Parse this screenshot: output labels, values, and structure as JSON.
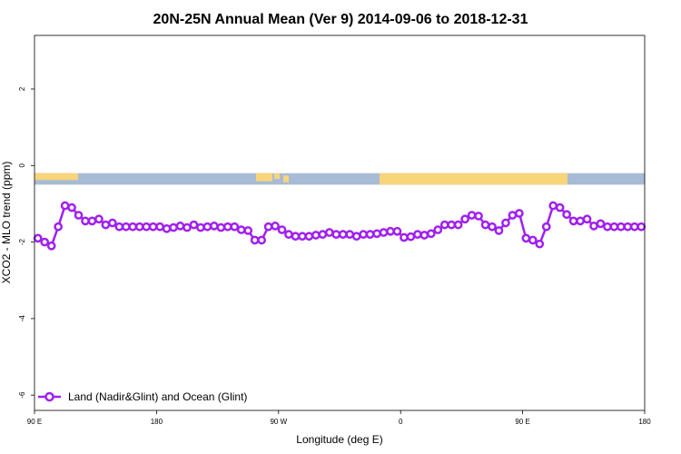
{
  "chart_data": {
    "type": "line",
    "title": "20N-25N Annual Mean (Ver 9)   2014-09-06 to 2018-12-31",
    "xlabel": "Longitude (deg E)",
    "ylabel": "XCO2 - MLO trend (ppm)",
    "xlim": [
      90,
      540
    ],
    "ylim": [
      -6.4,
      3.4
    ],
    "x_ticks": [
      {
        "value": 90,
        "label": "90 E"
      },
      {
        "value": 180,
        "label": "180"
      },
      {
        "value": 270,
        "label": "90 W"
      },
      {
        "value": 360,
        "label": "0"
      },
      {
        "value": 450,
        "label": "90 E"
      },
      {
        "value": 540,
        "label": "180"
      }
    ],
    "y_ticks": [
      {
        "value": 2,
        "label": "2"
      },
      {
        "value": 0,
        "label": "0"
      },
      {
        "value": -2,
        "label": "-2"
      },
      {
        "value": -4,
        "label": "-4"
      },
      {
        "value": -6,
        "label": "-6"
      }
    ],
    "series": [
      {
        "name": "Land (Nadir&Glint) and Ocean (Glint)",
        "color": "#a020f0",
        "x": [
          92.5,
          97.5,
          102.5,
          107.5,
          112.5,
          117.5,
          122.5,
          127.5,
          132.5,
          137.5,
          142.5,
          147.5,
          152.5,
          157.5,
          162.5,
          167.5,
          172.5,
          177.5,
          182.5,
          187.5,
          192.5,
          197.5,
          202.5,
          207.5,
          212.5,
          217.5,
          222.5,
          227.5,
          232.5,
          237.5,
          242.5,
          247.5,
          252.5,
          257.5,
          262.5,
          267.5,
          272.5,
          277.5,
          282.5,
          287.5,
          292.5,
          297.5,
          302.5,
          307.5,
          312.5,
          317.5,
          322.5,
          327.5,
          332.5,
          337.5,
          342.5,
          347.5,
          352.5,
          357.5,
          362.5,
          367.5,
          372.5,
          377.5,
          382.5,
          387.5,
          392.5,
          397.5,
          402.5,
          407.5,
          412.5,
          417.5,
          422.5,
          427.5,
          432.5,
          437.5,
          442.5,
          447.5,
          452.5,
          457.5,
          462.5,
          467.5,
          472.5,
          477.5,
          482.5,
          487.5,
          492.5,
          497.5,
          502.5,
          507.5,
          512.5,
          517.5,
          522.5,
          527.5,
          532.5,
          537.5
        ],
        "y": [
          -1.9,
          -2.0,
          -2.1,
          -1.6,
          -1.05,
          -1.1,
          -1.3,
          -1.45,
          -1.45,
          -1.4,
          -1.55,
          -1.5,
          -1.6,
          -1.6,
          -1.6,
          -1.6,
          -1.6,
          -1.6,
          -1.6,
          -1.65,
          -1.62,
          -1.58,
          -1.62,
          -1.55,
          -1.62,
          -1.6,
          -1.58,
          -1.62,
          -1.6,
          -1.6,
          -1.68,
          -1.7,
          -1.95,
          -1.95,
          -1.6,
          -1.58,
          -1.68,
          -1.8,
          -1.85,
          -1.85,
          -1.85,
          -1.82,
          -1.8,
          -1.75,
          -1.8,
          -1.8,
          -1.8,
          -1.85,
          -1.8,
          -1.8,
          -1.78,
          -1.75,
          -1.72,
          -1.72,
          -1.88,
          -1.86,
          -1.8,
          -1.82,
          -1.78,
          -1.68,
          -1.55,
          -1.55,
          -1.55,
          -1.4,
          -1.3,
          -1.32,
          -1.55,
          -1.6,
          -1.7,
          -1.5,
          -1.3,
          -1.25,
          -1.9,
          -1.95,
          -2.05,
          -1.6,
          -1.05,
          -1.1,
          -1.28,
          -1.45,
          -1.45,
          -1.4,
          -1.58,
          -1.52,
          -1.6,
          -1.6,
          -1.6,
          -1.6,
          -1.6,
          -1.6
        ]
      }
    ],
    "background_band": {
      "y_range": [
        -0.5,
        -0.2
      ],
      "ocean_color": "#a8bbd6",
      "land_color": "#f8d47a"
    },
    "legend": {
      "placement": "bottom-left"
    },
    "grid": false
  }
}
